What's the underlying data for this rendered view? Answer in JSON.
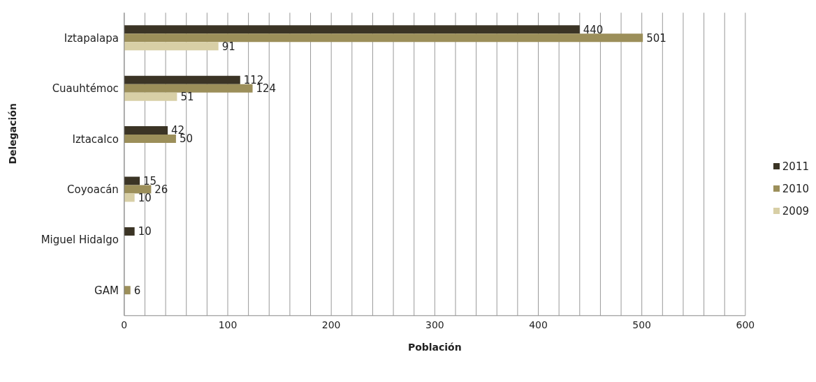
{
  "chart_data": {
    "type": "bar",
    "orientation": "horizontal",
    "xlabel": "Población",
    "ylabel": "Delegación",
    "categories": [
      "Iztapalapa",
      "Cuauhtémoc",
      "Iztacalco",
      "Coyoacán",
      "Miguel Hidalgo",
      "GAM"
    ],
    "series": [
      {
        "name": "2011",
        "color": "#3b3425",
        "values": [
          440,
          112,
          42,
          15,
          10,
          null
        ]
      },
      {
        "name": "2010",
        "color": "#9c8f5a",
        "values": [
          501,
          124,
          50,
          26,
          null,
          6
        ]
      },
      {
        "name": "2009",
        "color": "#d8cfa6",
        "values": [
          91,
          51,
          null,
          10,
          null,
          null
        ]
      }
    ],
    "xlim": [
      0,
      600
    ],
    "xticks": [
      0,
      {
        "value": 20,
        "label": null
      },
      {
        "value": 40,
        "label": null
      },
      {
        "value": 60,
        "label": null
      },
      {
        "value": 80,
        "label": null
      },
      100,
      {
        "value": 120,
        "label": null
      },
      {
        "value": 140,
        "label": null
      },
      {
        "value": 160,
        "label": null
      },
      {
        "value": 180,
        "label": null
      },
      200,
      {
        "value": 220,
        "label": null
      },
      {
        "value": 240,
        "label": null
      },
      {
        "value": 260,
        "label": null
      },
      {
        "value": 280,
        "label": null
      },
      300,
      {
        "value": 320,
        "label": null
      },
      {
        "value": 340,
        "label": null
      },
      {
        "value": 360,
        "label": null
      },
      {
        "value": 380,
        "label": null
      },
      400,
      {
        "value": 420,
        "label": null
      },
      {
        "value": 440,
        "label": null
      },
      {
        "value": 460,
        "label": null
      },
      {
        "value": 480,
        "label": null
      },
      500,
      {
        "value": 520,
        "label": null
      },
      {
        "value": 540,
        "label": null
      },
      {
        "value": 560,
        "label": null
      },
      {
        "value": 580,
        "label": null
      },
      600
    ],
    "grid": "x",
    "legend": "right",
    "data_labels": true
  }
}
